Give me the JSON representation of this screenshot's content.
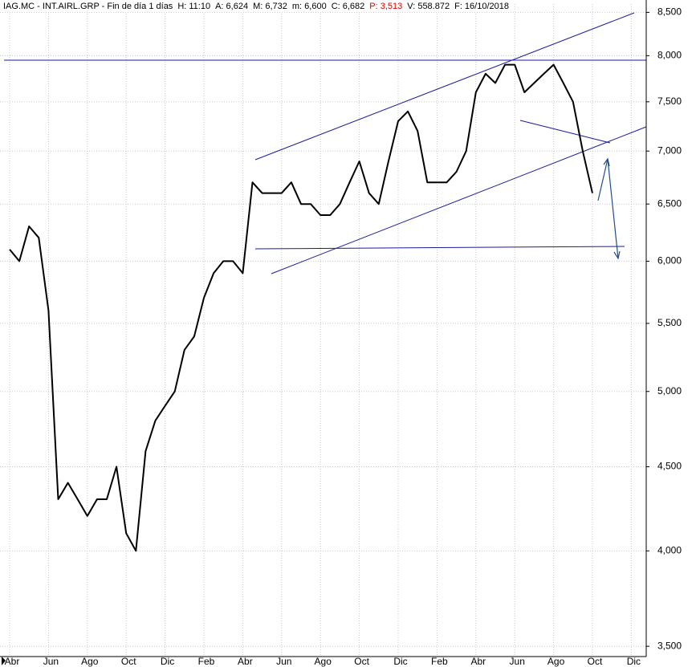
{
  "chart_data": {
    "type": "line",
    "title": "IAG.MC - INT.AIRL.GRP - Fin de día 1 días",
    "stats": [
      {
        "text": "H: 11:10",
        "color": "#000000"
      },
      {
        "text": "A: 6,624",
        "color": "#000000"
      },
      {
        "text": "M: 6,732",
        "color": "#000000"
      },
      {
        "text": "m: 6,600",
        "color": "#000000"
      },
      {
        "text": "C: 6,682",
        "color": "#000000"
      },
      {
        "text": "P: 3,513",
        "color": "#e00000"
      },
      {
        "text": "V: 558.872",
        "color": "#000000"
      },
      {
        "text": "F: 16/10/2018",
        "color": "#000000"
      }
    ],
    "categories": [
      "Abr",
      null,
      null,
      null,
      "Jun",
      null,
      null,
      null,
      "Ago",
      null,
      null,
      null,
      "Oct",
      null,
      null,
      null,
      "Dic",
      null,
      null,
      null,
      "Feb",
      null,
      null,
      null,
      "Abr",
      null,
      null,
      null,
      "Jun",
      null,
      null,
      null,
      "Ago",
      null,
      null,
      null,
      "Oct",
      null,
      null,
      null,
      "Dic",
      null,
      null,
      null,
      "Feb",
      null,
      null,
      null,
      "Abr",
      null,
      null,
      null,
      "Jun",
      null,
      null,
      null,
      "Ago",
      null,
      null,
      null,
      "Oct",
      null,
      null,
      null,
      "Dic"
    ],
    "series": [
      {
        "name": "IAG.MC",
        "color": "#000000",
        "values": [
          6.1,
          6.0,
          6.3,
          6.2,
          5.6,
          4.3,
          4.4,
          4.3,
          4.2,
          4.3,
          4.3,
          4.5,
          4.1,
          4.0,
          4.6,
          4.8,
          4.9,
          5.0,
          5.3,
          5.4,
          5.7,
          5.9,
          6.0,
          6.0,
          5.9,
          6.7,
          6.6,
          6.6,
          6.6,
          6.7,
          6.5,
          6.5,
          6.4,
          6.4,
          6.5,
          6.7,
          6.9,
          6.6,
          6.5,
          6.9,
          7.3,
          7.4,
          7.2,
          6.7,
          6.7,
          6.7,
          6.8,
          7.0,
          7.6,
          7.8,
          7.7,
          7.9,
          7.9,
          7.6,
          7.7,
          7.8,
          7.9,
          7.7,
          7.5,
          7.0,
          6.6,
          null,
          null,
          null,
          null
        ]
      }
    ],
    "ylim": [
      3.45,
      8.6
    ],
    "yticks": [
      {
        "value": 3.5,
        "label": "3,500"
      },
      {
        "value": 4,
        "label": "4,000"
      },
      {
        "value": 4.5,
        "label": "4,500"
      },
      {
        "value": 5,
        "label": "5,000"
      },
      {
        "value": 5.5,
        "label": "5,500"
      },
      {
        "value": 6,
        "label": "6,000"
      },
      {
        "value": 6.5,
        "label": "6,500"
      },
      {
        "value": 7,
        "label": "7,000"
      },
      {
        "value": 7.5,
        "label": "7,500"
      },
      {
        "value": 8,
        "label": "8,000"
      },
      {
        "value": 8.5,
        "label": "8,500"
      }
    ],
    "log_scale": true,
    "grid": true
  }
}
